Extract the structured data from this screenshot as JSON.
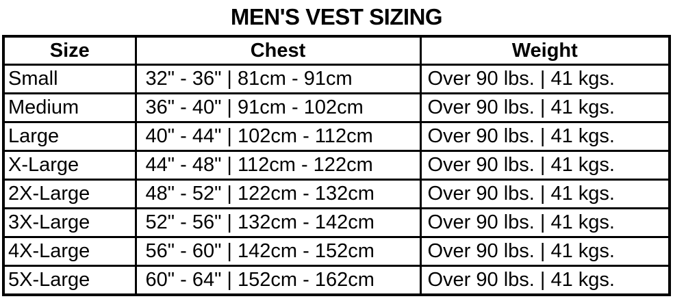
{
  "title": "MEN'S VEST SIZING",
  "chart_data": {
    "type": "table",
    "title": "MEN'S VEST SIZING",
    "columns": [
      "Size",
      "Chest",
      "Weight"
    ],
    "rows": [
      [
        "Small",
        "32\" - 36\" | 81cm - 91cm",
        "Over 90 lbs. | 41 kgs."
      ],
      [
        "Medium",
        "36\" - 40\" | 91cm - 102cm",
        "Over 90 lbs. | 41 kgs."
      ],
      [
        "Large",
        "40\" - 44\" | 102cm - 112cm",
        "Over 90 lbs. | 41 kgs."
      ],
      [
        "X-Large",
        "44\" - 48\" | 112cm - 122cm",
        "Over 90 lbs. | 41 kgs."
      ],
      [
        "2X-Large",
        "48\" - 52\" | 122cm - 132cm",
        "Over 90 lbs. | 41 kgs."
      ],
      [
        "3X-Large",
        "52\" - 56\" | 132cm - 142cm",
        "Over 90 lbs. | 41 kgs."
      ],
      [
        "4X-Large",
        "56\" - 60\" | 142cm - 152cm",
        "Over 90 lbs. | 41 kgs."
      ],
      [
        "5X-Large",
        "60\" - 64\" | 152cm - 162cm",
        "Over 90 lbs. | 41 kgs."
      ]
    ],
    "layout": {
      "grid": "on",
      "header_row": "bold",
      "border_color": "#000000"
    }
  },
  "colors": {
    "text": "#000000",
    "background": "#ffffff",
    "border": "#000000"
  }
}
